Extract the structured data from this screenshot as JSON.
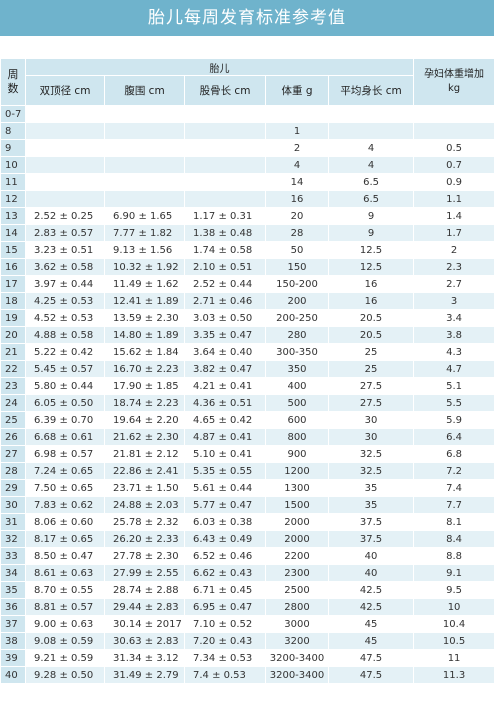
{
  "title": "胎儿每周发育标准参考值",
  "headers": {
    "week": "周数",
    "fetus_group": "胎儿",
    "bpd": "双顶径 cm",
    "ac": "腹围 cm",
    "fl": "股骨长 cm",
    "weight": "体重 g",
    "length": "平均身长 cm",
    "mother_gain": "孕妇体重增加 kg"
  },
  "rows": [
    {
      "w": "0-7",
      "bpd": "",
      "ac": "",
      "fl": "",
      "wt": "",
      "len": "",
      "gain": ""
    },
    {
      "w": "8",
      "bpd": "",
      "ac": "",
      "fl": "",
      "wt": "1",
      "len": "",
      "gain": ""
    },
    {
      "w": "9",
      "bpd": "",
      "ac": "",
      "fl": "",
      "wt": "2",
      "len": "4",
      "gain": "0.5"
    },
    {
      "w": "10",
      "bpd": "",
      "ac": "",
      "fl": "",
      "wt": "4",
      "len": "4",
      "gain": "0.7"
    },
    {
      "w": "11",
      "bpd": "",
      "ac": "",
      "fl": "",
      "wt": "14",
      "len": "6.5",
      "gain": "0.9"
    },
    {
      "w": "12",
      "bpd": "",
      "ac": "",
      "fl": "",
      "wt": "16",
      "len": "6.5",
      "gain": "1.1"
    },
    {
      "w": "13",
      "bpd": "2.52 ± 0.25",
      "ac": "6.90 ± 1.65",
      "fl": "1.17 ± 0.31",
      "wt": "20",
      "len": "9",
      "gain": "1.4"
    },
    {
      "w": "14",
      "bpd": "2.83 ± 0.57",
      "ac": "7.77 ± 1.82",
      "fl": "1.38 ± 0.48",
      "wt": "28",
      "len": "9",
      "gain": "1.7"
    },
    {
      "w": "15",
      "bpd": "3.23 ± 0.51",
      "ac": "9.13 ± 1.56",
      "fl": "1.74 ± 0.58",
      "wt": "50",
      "len": "12.5",
      "gain": "2"
    },
    {
      "w": "16",
      "bpd": "3.62 ± 0.58",
      "ac": "10.32 ± 1.92",
      "fl": "2.10 ± 0.51",
      "wt": "150",
      "len": "12.5",
      "gain": "2.3"
    },
    {
      "w": "17",
      "bpd": "3.97 ± 0.44",
      "ac": "11.49 ± 1.62",
      "fl": "2.52 ± 0.44",
      "wt": "150-200",
      "len": "16",
      "gain": "2.7"
    },
    {
      "w": "18",
      "bpd": "4.25 ± 0.53",
      "ac": "12.41 ± 1.89",
      "fl": "2.71 ± 0.46",
      "wt": "200",
      "len": "16",
      "gain": "3"
    },
    {
      "w": "19",
      "bpd": "4.52 ± 0.53",
      "ac": "13.59 ± 2.30",
      "fl": "3.03 ± 0.50",
      "wt": "200-250",
      "len": "20.5",
      "gain": "3.4"
    },
    {
      "w": "20",
      "bpd": "4.88 ± 0.58",
      "ac": "14.80 ± 1.89",
      "fl": "3.35 ± 0.47",
      "wt": "280",
      "len": "20.5",
      "gain": "3.8"
    },
    {
      "w": "21",
      "bpd": "5.22 ± 0.42",
      "ac": "15.62 ± 1.84",
      "fl": "3.64 ± 0.40",
      "wt": "300-350",
      "len": "25",
      "gain": "4.3"
    },
    {
      "w": "22",
      "bpd": "5.45 ± 0.57",
      "ac": "16.70 ± 2.23",
      "fl": "3.82 ± 0.47",
      "wt": "350",
      "len": "25",
      "gain": "4.7"
    },
    {
      "w": "23",
      "bpd": "5.80 ± 0.44",
      "ac": "17.90 ± 1.85",
      "fl": "4.21 ± 0.41",
      "wt": "400",
      "len": "27.5",
      "gain": "5.1"
    },
    {
      "w": "24",
      "bpd": "6.05 ± 0.50",
      "ac": "18.74 ± 2.23",
      "fl": "4.36 ± 0.51",
      "wt": "500",
      "len": "27.5",
      "gain": "5.5"
    },
    {
      "w": "25",
      "bpd": "6.39 ± 0.70",
      "ac": "19.64 ± 2.20",
      "fl": "4.65 ± 0.42",
      "wt": "600",
      "len": "30",
      "gain": "5.9"
    },
    {
      "w": "26",
      "bpd": "6.68 ± 0.61",
      "ac": "21.62 ± 2.30",
      "fl": "4.87 ± 0.41",
      "wt": "800",
      "len": "30",
      "gain": "6.4"
    },
    {
      "w": "27",
      "bpd": "6.98 ± 0.57",
      "ac": "21.81 ± 2.12",
      "fl": "5.10 ± 0.41",
      "wt": "900",
      "len": "32.5",
      "gain": "6.8"
    },
    {
      "w": "28",
      "bpd": "7.24 ± 0.65",
      "ac": "22.86 ± 2.41",
      "fl": "5.35 ± 0.55",
      "wt": "1200",
      "len": "32.5",
      "gain": "7.2"
    },
    {
      "w": "29",
      "bpd": "7.50 ± 0.65",
      "ac": "23.71 ± 1.50",
      "fl": "5.61 ± 0.44",
      "wt": "1300",
      "len": "35",
      "gain": "7.4"
    },
    {
      "w": "30",
      "bpd": "7.83 ± 0.62",
      "ac": "24.88 ± 2.03",
      "fl": "5.77 ± 0.47",
      "wt": "1500",
      "len": "35",
      "gain": "7.7"
    },
    {
      "w": "31",
      "bpd": "8.06 ± 0.60",
      "ac": "25.78 ± 2.32",
      "fl": "6.03 ± 0.38",
      "wt": "2000",
      "len": "37.5",
      "gain": "8.1"
    },
    {
      "w": "32",
      "bpd": "8.17 ± 0.65",
      "ac": "26.20 ± 2.33",
      "fl": "6.43 ± 0.49",
      "wt": "2000",
      "len": "37.5",
      "gain": "8.4"
    },
    {
      "w": "33",
      "bpd": "8.50 ± 0.47",
      "ac": "27.78 ± 2.30",
      "fl": "6.52 ± 0.46",
      "wt": "2200",
      "len": "40",
      "gain": "8.8"
    },
    {
      "w": "34",
      "bpd": "8.61 ± 0.63",
      "ac": "27.99 ± 2.55",
      "fl": "6.62 ± 0.43",
      "wt": "2300",
      "len": "40",
      "gain": "9.1"
    },
    {
      "w": "35",
      "bpd": "8.70 ± 0.55",
      "ac": "28.74 ± 2.88",
      "fl": "6.71 ± 0.45",
      "wt": "2500",
      "len": "42.5",
      "gain": "9.5"
    },
    {
      "w": "36",
      "bpd": "8.81 ± 0.57",
      "ac": "29.44 ± 2.83",
      "fl": "6.95 ± 0.47",
      "wt": "2800",
      "len": "42.5",
      "gain": "10"
    },
    {
      "w": "37",
      "bpd": "9.00 ± 0.63",
      "ac": "30.14 ± 2017",
      "fl": "7.10 ± 0.52",
      "wt": "3000",
      "len": "45",
      "gain": "10.4"
    },
    {
      "w": "38",
      "bpd": "9.08 ± 0.59",
      "ac": "30.63 ± 2.83",
      "fl": "7.20 ± 0.43",
      "wt": "3200",
      "len": "45",
      "gain": "10.5"
    },
    {
      "w": "39",
      "bpd": "9.21 ± 0.59",
      "ac": "31.34 ± 3.12",
      "fl": "7.34 ± 0.53",
      "wt": "3200-3400",
      "len": "47.5",
      "gain": "11"
    },
    {
      "w": "40",
      "bpd": "9.28 ± 0.50",
      "ac": "31.49 ± 2.79",
      "fl": "7.4 ± 0.53",
      "wt": "3200-3400",
      "len": "47.5",
      "gain": "11.3"
    }
  ]
}
